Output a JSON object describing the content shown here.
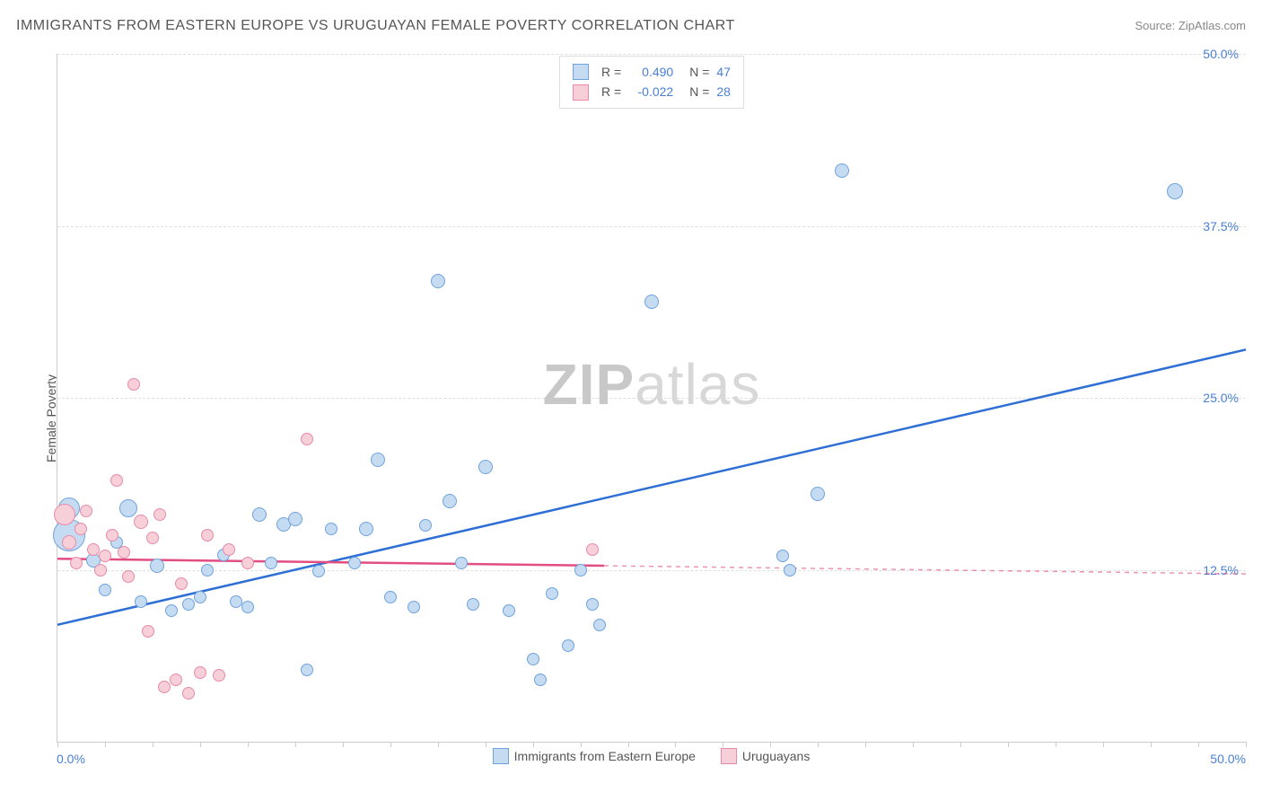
{
  "title": "IMMIGRANTS FROM EASTERN EUROPE VS URUGUAYAN FEMALE POVERTY CORRELATION CHART",
  "source_label": "Source: ZipAtlas.com",
  "watermark_a": "ZIP",
  "watermark_b": "atlas",
  "chart": {
    "type": "scatter",
    "xlim": [
      0,
      50
    ],
    "ylim": [
      0,
      50
    ],
    "y_gridlines": [
      12.5,
      25.0,
      37.5,
      50.0
    ],
    "y_tick_labels": [
      "12.5%",
      "25.0%",
      "37.5%",
      "50.0%"
    ],
    "x_label_min": "0.0%",
    "x_label_max": "50.0%",
    "x_ticks": [
      0,
      2,
      4,
      6,
      8,
      10,
      12,
      14,
      16,
      18,
      20,
      22,
      24,
      26,
      28,
      30,
      32,
      34,
      36,
      38,
      40,
      42,
      44,
      46,
      48,
      50
    ],
    "yaxis_label": "Female Poverty",
    "grid_color": "#e0e0e0",
    "axis_color": "#cccccc",
    "tick_label_color": "#4a7fd8",
    "background_color": "#ffffff",
    "series": [
      {
        "id": "eastern_europe",
        "label": "Immigrants from Eastern Europe",
        "fill": "#c5dbf2",
        "stroke": "#6fa3dd",
        "line_color": "#2e6fd6",
        "r_label": "R =",
        "r_value": "0.490",
        "n_label": "N =",
        "n_value": "47",
        "trend": {
          "x1": 0,
          "y1": 8.5,
          "x2": 50,
          "y2": 28.5,
          "solid_until_x": 50
        },
        "points": [
          {
            "x": 0.5,
            "y": 17,
            "r": 12
          },
          {
            "x": 0.5,
            "y": 15,
            "r": 18
          },
          {
            "x": 1.5,
            "y": 13.2,
            "r": 8
          },
          {
            "x": 2,
            "y": 11,
            "r": 7
          },
          {
            "x": 2.5,
            "y": 14.5,
            "r": 7
          },
          {
            "x": 3,
            "y": 17,
            "r": 10
          },
          {
            "x": 3.5,
            "y": 10.2,
            "r": 7
          },
          {
            "x": 4.2,
            "y": 12.8,
            "r": 8
          },
          {
            "x": 4.8,
            "y": 9.5,
            "r": 7
          },
          {
            "x": 5.5,
            "y": 10,
            "r": 7
          },
          {
            "x": 6,
            "y": 10.5,
            "r": 7
          },
          {
            "x": 6.3,
            "y": 12.5,
            "r": 7
          },
          {
            "x": 7,
            "y": 13.6,
            "r": 7
          },
          {
            "x": 7.5,
            "y": 10.2,
            "r": 7
          },
          {
            "x": 8,
            "y": 9.8,
            "r": 7
          },
          {
            "x": 8.5,
            "y": 16.5,
            "r": 8
          },
          {
            "x": 9,
            "y": 13,
            "r": 7
          },
          {
            "x": 9.5,
            "y": 15.8,
            "r": 8
          },
          {
            "x": 10,
            "y": 16.2,
            "r": 8
          },
          {
            "x": 10.5,
            "y": 5.2,
            "r": 7
          },
          {
            "x": 11,
            "y": 12.4,
            "r": 7
          },
          {
            "x": 11.5,
            "y": 15.5,
            "r": 7
          },
          {
            "x": 12.5,
            "y": 13,
            "r": 7
          },
          {
            "x": 13,
            "y": 15.5,
            "r": 8
          },
          {
            "x": 13.5,
            "y": 20.5,
            "r": 8
          },
          {
            "x": 14,
            "y": 10.5,
            "r": 7
          },
          {
            "x": 15,
            "y": 9.8,
            "r": 7
          },
          {
            "x": 15.5,
            "y": 15.7,
            "r": 7
          },
          {
            "x": 16,
            "y": 33.5,
            "r": 8
          },
          {
            "x": 16.5,
            "y": 17.5,
            "r": 8
          },
          {
            "x": 17,
            "y": 13,
            "r": 7
          },
          {
            "x": 17.5,
            "y": 10,
            "r": 7
          },
          {
            "x": 18,
            "y": 20,
            "r": 8
          },
          {
            "x": 19,
            "y": 9.5,
            "r": 7
          },
          {
            "x": 20,
            "y": 6,
            "r": 7
          },
          {
            "x": 20.3,
            "y": 4.5,
            "r": 7
          },
          {
            "x": 20.8,
            "y": 10.8,
            "r": 7
          },
          {
            "x": 21.5,
            "y": 7,
            "r": 7
          },
          {
            "x": 22,
            "y": 12.5,
            "r": 7
          },
          {
            "x": 22.5,
            "y": 10,
            "r": 7
          },
          {
            "x": 22.8,
            "y": 8.5,
            "r": 7
          },
          {
            "x": 25,
            "y": 32,
            "r": 8
          },
          {
            "x": 30.5,
            "y": 13.5,
            "r": 7
          },
          {
            "x": 30.8,
            "y": 12.5,
            "r": 7
          },
          {
            "x": 32,
            "y": 18,
            "r": 8
          },
          {
            "x": 33,
            "y": 41.5,
            "r": 8
          },
          {
            "x": 47,
            "y": 40,
            "r": 9
          }
        ]
      },
      {
        "id": "uruguayans",
        "label": "Uruguayans",
        "fill": "#f6cfd9",
        "stroke": "#e88aa8",
        "line_color": "#e24d82",
        "r_label": "R =",
        "r_value": "-0.022",
        "n_label": "N =",
        "n_value": "28",
        "trend": {
          "x1": 0,
          "y1": 13.3,
          "x2": 50,
          "y2": 12.2,
          "solid_until_x": 23
        },
        "points": [
          {
            "x": 0.3,
            "y": 16.5,
            "r": 12
          },
          {
            "x": 0.5,
            "y": 14.5,
            "r": 8
          },
          {
            "x": 0.8,
            "y": 13,
            "r": 7
          },
          {
            "x": 1,
            "y": 15.5,
            "r": 7
          },
          {
            "x": 1.2,
            "y": 16.8,
            "r": 7
          },
          {
            "x": 1.5,
            "y": 14,
            "r": 7
          },
          {
            "x": 1.8,
            "y": 12.5,
            "r": 7
          },
          {
            "x": 2,
            "y": 13.5,
            "r": 7
          },
          {
            "x": 2.3,
            "y": 15,
            "r": 7
          },
          {
            "x": 2.5,
            "y": 19,
            "r": 7
          },
          {
            "x": 2.8,
            "y": 13.8,
            "r": 7
          },
          {
            "x": 3,
            "y": 12,
            "r": 7
          },
          {
            "x": 3.2,
            "y": 26,
            "r": 7
          },
          {
            "x": 3.5,
            "y": 16,
            "r": 8
          },
          {
            "x": 3.8,
            "y": 8,
            "r": 7
          },
          {
            "x": 4,
            "y": 14.8,
            "r": 7
          },
          {
            "x": 4.3,
            "y": 16.5,
            "r": 7
          },
          {
            "x": 4.5,
            "y": 4,
            "r": 7
          },
          {
            "x": 5,
            "y": 4.5,
            "r": 7
          },
          {
            "x": 5.2,
            "y": 11.5,
            "r": 7
          },
          {
            "x": 5.5,
            "y": 3.5,
            "r": 7
          },
          {
            "x": 6,
            "y": 5,
            "r": 7
          },
          {
            "x": 6.3,
            "y": 15,
            "r": 7
          },
          {
            "x": 6.8,
            "y": 4.8,
            "r": 7
          },
          {
            "x": 7.2,
            "y": 14,
            "r": 7
          },
          {
            "x": 8,
            "y": 13,
            "r": 7
          },
          {
            "x": 10.5,
            "y": 22,
            "r": 7
          },
          {
            "x": 22.5,
            "y": 14,
            "r": 7
          }
        ]
      }
    ]
  }
}
